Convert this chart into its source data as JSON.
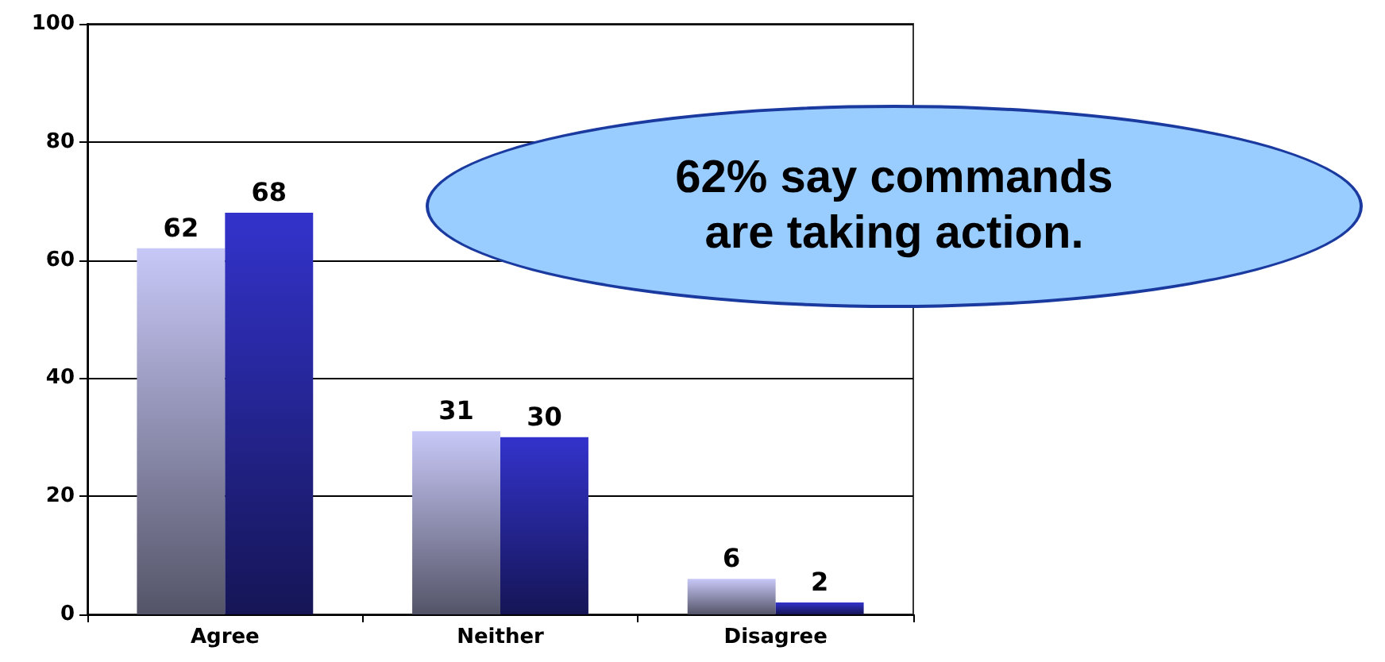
{
  "chart_data": {
    "type": "bar",
    "categories": [
      "Agree",
      "Neither",
      "Disagree"
    ],
    "series": [
      {
        "color": "#c8c8f8",
        "values": [
          62,
          31,
          6
        ]
      },
      {
        "color": "#3333cc",
        "values": [
          68,
          30,
          2
        ]
      }
    ],
    "ylim": [
      0,
      100
    ],
    "yticks": [
      0,
      20,
      40,
      60,
      80,
      100
    ],
    "grid": "y",
    "data_labels": true,
    "annotations": [
      "62% say commands\nare taking action."
    ]
  }
}
